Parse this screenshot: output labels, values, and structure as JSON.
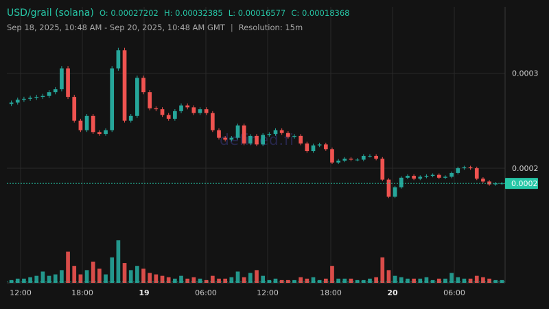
{
  "header": {
    "pair": "USD/grail (solana)",
    "open": "O: 0.00027202",
    "high": "H: 0.00032385",
    "low": "L: 0.00016577",
    "close": "C: 0.00018368",
    "range": "Sep 18, 2025, 10:48 AM - Sep 20, 2025, 10:48 AM GMT",
    "resolution": "Resolution: 15m"
  },
  "watermark": "defined.fi",
  "colors": {
    "up": "#26a69a",
    "down": "#ef5350",
    "background": "#131313",
    "grid": "#2a2a2a",
    "last_price": "#26c6a6"
  },
  "chart_data": {
    "type": "candlestick",
    "x_tick_labels": [
      "12:00",
      "18:00",
      "19",
      "06:00",
      "12:00",
      "18:00",
      "20",
      "06:00"
    ],
    "y_tick_labels": [
      "0.0003",
      "0.0002"
    ],
    "y_ticks": [
      0.0003,
      0.0002
    ],
    "last_price_label": "0.0002",
    "last_price": 0.000184,
    "ylim": [
      0.000135,
      0.000335
    ],
    "interval": "15m",
    "candles_close": [
      0.000269,
      0.000272,
      0.000273,
      0.000274,
      0.000275,
      0.000276,
      0.00028,
      0.000283,
      0.000305,
      0.000275,
      0.00025,
      0.00024,
      0.000255,
      0.000238,
      0.000236,
      0.00024,
      0.000305,
      0.000324,
      0.00025,
      0.000255,
      0.000295,
      0.00028,
      0.000263,
      0.000262,
      0.000256,
      0.000252,
      0.00026,
      0.000266,
      0.000264,
      0.000258,
      0.000262,
      0.000258,
      0.00024,
      0.000232,
      0.00023,
      0.000232,
      0.000245,
      0.000226,
      0.000234,
      0.000225,
      0.000235,
      0.000236,
      0.00024,
      0.000237,
      0.000233,
      0.000234,
      0.000226,
      0.000218,
      0.000224,
      0.000225,
      0.00022,
      0.000206,
      0.000208,
      0.00021,
      0.000209,
      0.000209,
      0.000213,
      0.000213,
      0.00021,
      0.000188,
      0.00017,
      0.00018,
      0.00019,
      0.000192,
      0.000189,
      0.000191,
      0.000192,
      0.000193,
      0.00019,
      0.000191,
      0.000195,
      0.0002,
      0.000201,
      0.0002,
      0.000189,
      0.000186,
      0.000183,
      0.000184,
      0.000184
    ],
    "volumes": [
      2,
      3,
      3,
      4,
      5,
      8,
      5,
      6,
      9,
      22,
      12,
      6,
      9,
      15,
      10,
      6,
      18,
      30,
      14,
      9,
      12,
      10,
      7,
      6,
      5,
      4,
      3,
      5,
      3,
      4,
      3,
      2,
      5,
      3,
      3,
      4,
      8,
      4,
      7,
      9,
      5,
      2,
      3,
      2,
      2,
      2,
      4,
      3,
      4,
      2,
      3,
      12,
      3,
      3,
      3,
      2,
      2,
      3,
      4,
      18,
      9,
      5,
      4,
      3,
      3,
      3,
      4,
      2,
      3,
      3,
      7,
      4,
      3,
      3,
      5,
      4,
      3,
      2,
      2
    ],
    "max_volume": 30
  }
}
